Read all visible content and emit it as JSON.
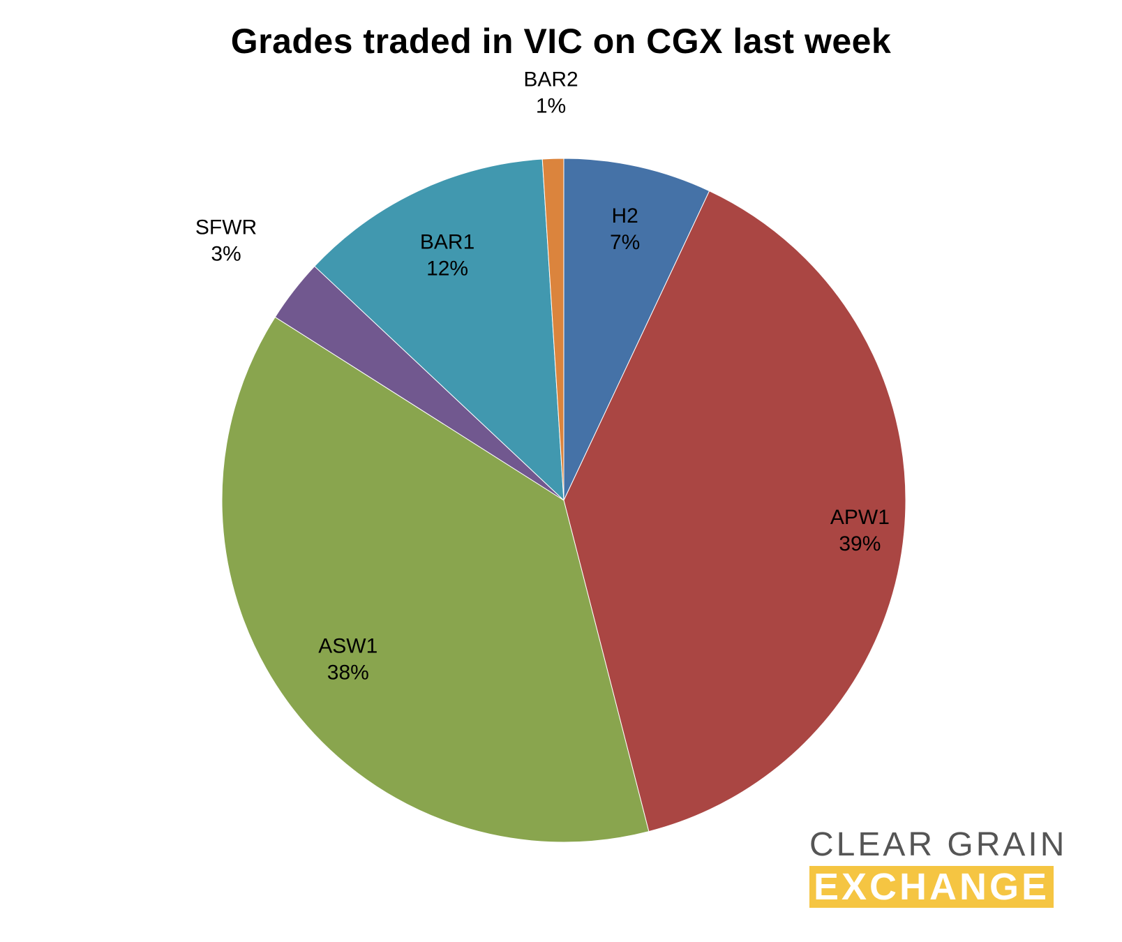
{
  "chart_data": {
    "type": "pie",
    "title": "Grades traded in VIC on CGX last week",
    "slices": [
      {
        "label": "H2",
        "percent_label": "7%",
        "value": 7,
        "color": "#4572a7"
      },
      {
        "label": "APW1",
        "percent_label": "39%",
        "value": 39,
        "color": "#aa4643"
      },
      {
        "label": "ASW1",
        "percent_label": "38%",
        "value": 38,
        "color": "#89a54e"
      },
      {
        "label": "SFWR",
        "percent_label": "3%",
        "value": 3,
        "color": "#71588f"
      },
      {
        "label": "BAR1",
        "percent_label": "12%",
        "value": 12,
        "color": "#4198af"
      },
      {
        "label": "BAR2",
        "percent_label": "1%",
        "value": 1,
        "color": "#db843d"
      }
    ],
    "start": "12 o'clock",
    "direction": "clockwise"
  },
  "logo": {
    "line1": "CLEAR GRAIN",
    "line2": "EXCHANGE",
    "accent_color": "#f5c542",
    "text_color": "#555555"
  }
}
